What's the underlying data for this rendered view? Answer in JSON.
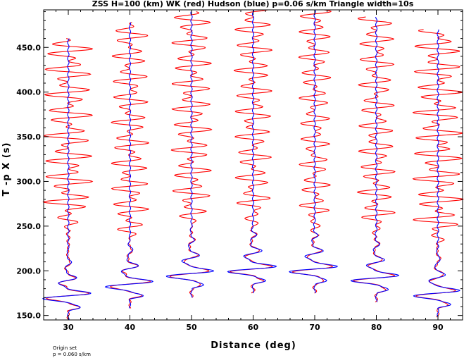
{
  "chart_data": {
    "type": "line",
    "title": "ZSS H=100 (km) WK (red) Hudson (blue) p=0.06 s/km Triangle width=10s",
    "xlabel": "Distance (deg)",
    "ylabel": "T -p X (s)",
    "xlim": [
      26,
      94
    ],
    "ylim": [
      145,
      492
    ],
    "x_ticks": [
      "30",
      "40",
      "50",
      "60",
      "70",
      "80",
      "90"
    ],
    "y_ticks": [
      "150.0",
      "200.0",
      "250.0",
      "300.0",
      "350.0",
      "400.0",
      "450.0"
    ],
    "series": [
      {
        "name": "WK",
        "color": "#ff0000",
        "traces": [
          {
            "distance": 30,
            "t_start": 145,
            "t_end": 460,
            "onset": 245,
            "amp": 4.0
          },
          {
            "distance": 40,
            "t_start": 158,
            "t_end": 478,
            "onset": 230,
            "amp": 3.0
          },
          {
            "distance": 50,
            "t_start": 170,
            "t_end": 490,
            "onset": 245,
            "amp": 3.2
          },
          {
            "distance": 60,
            "t_start": 175,
            "t_end": 492,
            "onset": 245,
            "amp": 3.0
          },
          {
            "distance": 70,
            "t_start": 175,
            "t_end": 492,
            "onset": 240,
            "amp": 2.6
          },
          {
            "distance": 80,
            "t_start": 165,
            "t_end": 484,
            "onset": 238,
            "amp": 3.0
          },
          {
            "distance": 90,
            "t_start": 148,
            "t_end": 470,
            "onset": 228,
            "amp": 4.0
          }
        ]
      },
      {
        "name": "Hudson",
        "color": "#0000ff",
        "traces": [
          {
            "distance": 30,
            "t_start": 145,
            "t_end": 460
          },
          {
            "distance": 40,
            "t_start": 158,
            "t_end": 478
          },
          {
            "distance": 50,
            "t_start": 170,
            "t_end": 490
          },
          {
            "distance": 60,
            "t_start": 175,
            "t_end": 492
          },
          {
            "distance": 70,
            "t_start": 175,
            "t_end": 492
          },
          {
            "distance": 80,
            "t_start": 165,
            "t_end": 484
          },
          {
            "distance": 90,
            "t_start": 148,
            "t_end": 470
          }
        ]
      }
    ],
    "grid": false,
    "legend": "none"
  },
  "footnote": {
    "line1": "Origin set",
    "line2": "p = 0.060 s/km"
  }
}
